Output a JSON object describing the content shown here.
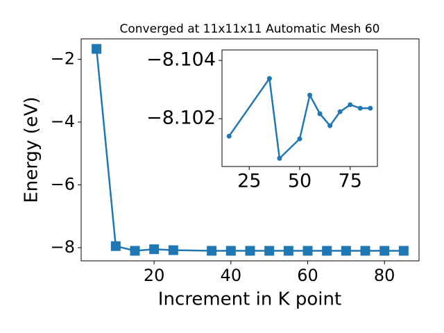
{
  "chart_data": [
    {
      "type": "line",
      "title": "Converged at 11x11x11 Automatic Mesh 60",
      "x_label": "Increment in K point",
      "y_label": "Energy (eV)",
      "x": [
        5,
        10,
        15,
        20,
        25,
        35,
        40,
        45,
        50,
        55,
        60,
        65,
        70,
        75,
        80,
        85
      ],
      "series": [
        {
          "name": "Energy",
          "color": "#1f77b4",
          "marker": "square",
          "values": [
            -1.67,
            -7.95,
            -8.1,
            -8.05,
            -8.08,
            -8.1,
            -8.1,
            -8.1,
            -8.1,
            -8.1,
            -8.1,
            -8.1,
            -8.1,
            -8.1,
            -8.1,
            -8.1
          ]
        }
      ],
      "xlim": [
        1,
        89
      ],
      "ylim": [
        -8.42,
        -1.35
      ],
      "xticks": [
        20,
        40,
        60,
        80
      ],
      "yticks": [
        {
          "value": -8,
          "label": "−8"
        },
        {
          "value": -6,
          "label": "−6"
        },
        {
          "value": -4,
          "label": "−4"
        },
        {
          "value": -2,
          "label": "−2"
        }
      ]
    },
    {
      "type": "line",
      "x": [
        15,
        35,
        40,
        50,
        55,
        60,
        65,
        70,
        75,
        80,
        85
      ],
      "series": [
        {
          "name": "Energy",
          "color": "#1f77b4",
          "marker": "circle",
          "values": [
            -8.1014,
            -8.10338,
            -8.10064,
            -8.10131,
            -8.10281,
            -8.10217,
            -8.10176,
            -8.10224,
            -8.10248,
            -8.10236,
            -8.10236
          ]
        }
      ],
      "xlim": [
        11.5,
        88.5
      ],
      "ylim": [
        -8.10036,
        -8.10436
      ],
      "xticks": [
        25,
        50,
        75
      ],
      "yticks": [
        {
          "value": -8.102,
          "label": "−8.102"
        },
        {
          "value": -8.104,
          "label": "−8.104"
        }
      ]
    }
  ]
}
